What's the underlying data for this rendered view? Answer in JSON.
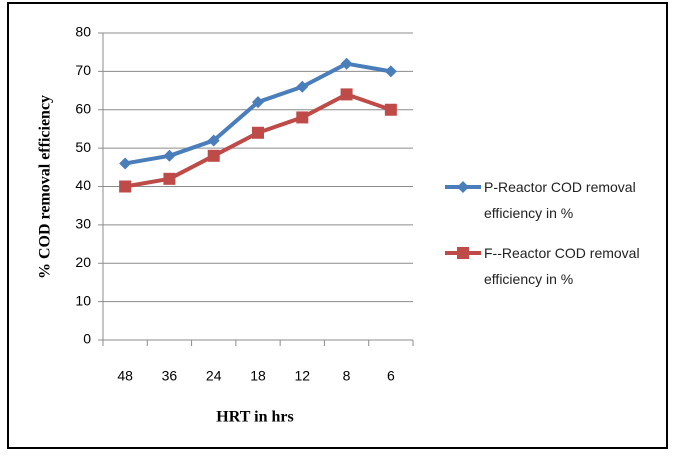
{
  "chart_data": {
    "type": "line",
    "categories": [
      "48",
      "36",
      "24",
      "18",
      "12",
      "8",
      "6"
    ],
    "series": [
      {
        "name": "P-Reactor COD removal efficiency in %",
        "color": "#4a7ebb",
        "marker": "diamond",
        "values": [
          46,
          48,
          52,
          62,
          66,
          72,
          70
        ]
      },
      {
        "name": "F--Reactor COD removal efficiency in %",
        "color": "#be4b48",
        "marker": "square",
        "values": [
          40,
          42,
          48,
          54,
          58,
          64,
          60
        ]
      }
    ],
    "xlabel": "HRT in hrs",
    "ylabel": "% COD removal efficiency",
    "ylim": [
      0,
      80
    ],
    "yticks": [
      0,
      10,
      20,
      30,
      40,
      50,
      60,
      70,
      80
    ],
    "grid": true,
    "legend": "right"
  }
}
